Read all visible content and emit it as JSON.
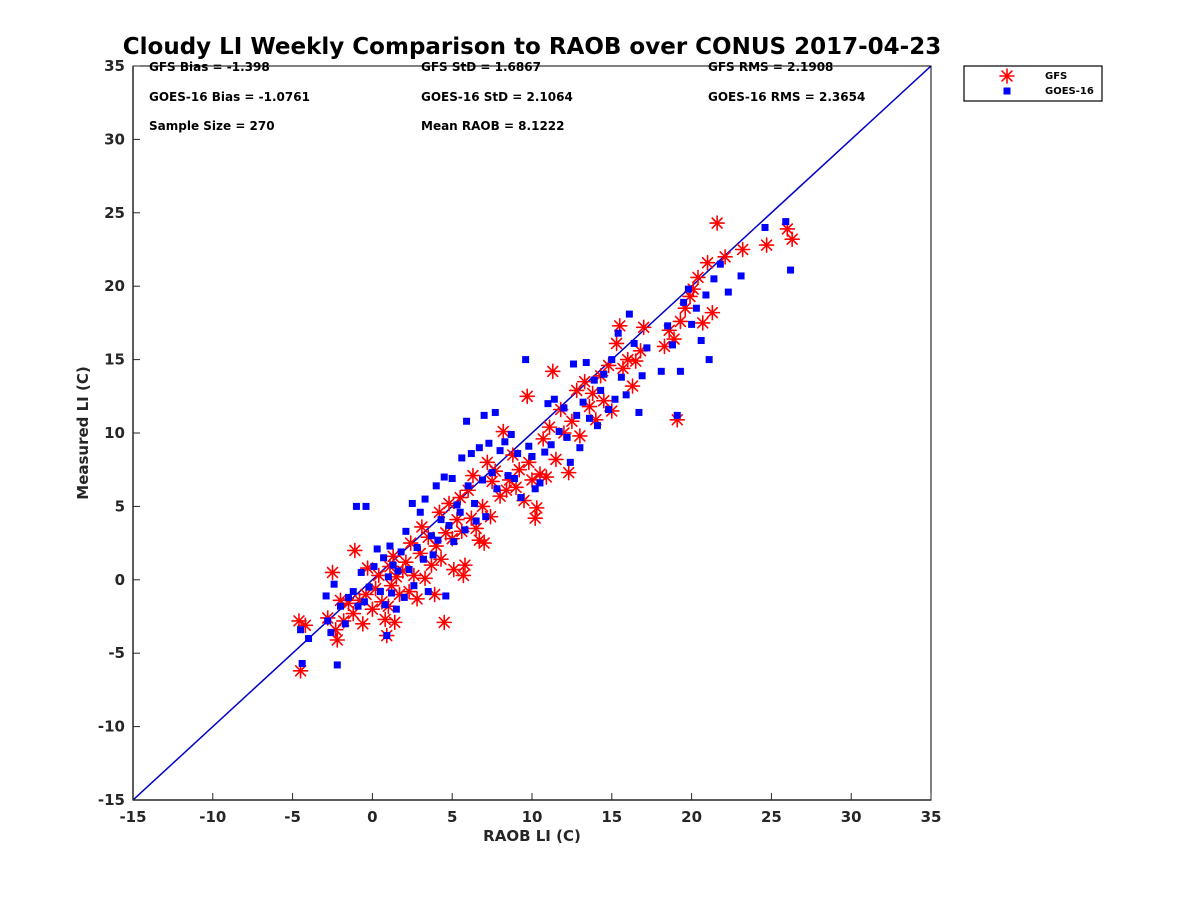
{
  "chart_data": {
    "type": "scatter",
    "title": "Cloudy LI Weekly Comparison to RAOB over CONUS 2017-04-23",
    "xlabel": "RAOB LI (C)",
    "ylabel": "Measured LI (C)",
    "xlim": [
      -15,
      35
    ],
    "ylim": [
      -15,
      35
    ],
    "xticks": [
      -15,
      -10,
      -5,
      0,
      5,
      10,
      15,
      20,
      25,
      30,
      35
    ],
    "yticks": [
      -15,
      -10,
      -5,
      0,
      5,
      10,
      15,
      20,
      25,
      30,
      35
    ],
    "grid": false,
    "legend_position": "outside-top-right",
    "reference_line": {
      "from": [
        -15,
        -15
      ],
      "to": [
        35,
        35
      ],
      "color": "#0000cc"
    },
    "stats": [
      "GFS Bias = -1.398",
      "GFS StD = 1.6867",
      "GFS RMS = 2.1908",
      "GOES-16 Bias = -1.0761",
      "GOES-16 StD = 2.1064",
      "GOES-16 RMS = 2.3654",
      "Sample Size = 270",
      "Mean RAOB = 8.1222"
    ],
    "series": [
      {
        "name": "GFS",
        "marker": "asterisk",
        "color": "#ff0000",
        "points": [
          [
            -4.6,
            -2.8
          ],
          [
            -4.5,
            -6.2
          ],
          [
            -4.2,
            -3.1
          ],
          [
            -2.8,
            -2.6
          ],
          [
            -2.5,
            0.5
          ],
          [
            -2.3,
            -3.4
          ],
          [
            -2.2,
            -4.1
          ],
          [
            -2.0,
            -1.4
          ],
          [
            -1.8,
            -2.8
          ],
          [
            -1.5,
            -1.6
          ],
          [
            -1.2,
            -2.3
          ],
          [
            -1.1,
            2.0
          ],
          [
            -0.8,
            -1.4
          ],
          [
            -0.6,
            -3.0
          ],
          [
            -0.4,
            -1.0
          ],
          [
            -0.3,
            0.8
          ],
          [
            0.0,
            -2.0
          ],
          [
            0.2,
            -0.6
          ],
          [
            0.4,
            0.3
          ],
          [
            0.6,
            -1.5
          ],
          [
            0.8,
            -2.7
          ],
          [
            0.9,
            -3.8
          ],
          [
            1.0,
            -1.8
          ],
          [
            1.1,
            0.9
          ],
          [
            1.2,
            -0.4
          ],
          [
            1.3,
            1.6
          ],
          [
            1.4,
            -2.9
          ],
          [
            1.5,
            0.2
          ],
          [
            1.7,
            -1.0
          ],
          [
            1.9,
            0.6
          ],
          [
            2.1,
            1.2
          ],
          [
            2.3,
            -0.8
          ],
          [
            2.4,
            2.5
          ],
          [
            2.6,
            0.3
          ],
          [
            2.8,
            -1.3
          ],
          [
            3.0,
            1.8
          ],
          [
            3.1,
            3.6
          ],
          [
            3.3,
            0.1
          ],
          [
            3.5,
            2.9
          ],
          [
            3.7,
            1.0
          ],
          [
            3.9,
            -1.0
          ],
          [
            4.0,
            2.3
          ],
          [
            4.2,
            4.6
          ],
          [
            4.3,
            1.4
          ],
          [
            4.5,
            -2.9
          ],
          [
            4.6,
            3.2
          ],
          [
            4.8,
            5.2
          ],
          [
            5.0,
            2.8
          ],
          [
            5.1,
            0.7
          ],
          [
            5.3,
            4.1
          ],
          [
            5.5,
            5.6
          ],
          [
            5.6,
            3.3
          ],
          [
            5.7,
            0.3
          ],
          [
            5.8,
            1.0
          ],
          [
            6.0,
            6.1
          ],
          [
            6.2,
            4.2
          ],
          [
            6.3,
            7.1
          ],
          [
            6.5,
            3.5
          ],
          [
            6.7,
            2.7
          ],
          [
            6.9,
            5.0
          ],
          [
            7.0,
            2.5
          ],
          [
            7.2,
            8.0
          ],
          [
            7.4,
            4.3
          ],
          [
            7.5,
            6.7
          ],
          [
            7.7,
            7.4
          ],
          [
            8.0,
            5.7
          ],
          [
            8.2,
            10.1
          ],
          [
            8.4,
            6.1
          ],
          [
            8.6,
            6.8
          ],
          [
            8.8,
            8.5
          ],
          [
            9.0,
            6.3
          ],
          [
            9.2,
            7.5
          ],
          [
            9.5,
            5.4
          ],
          [
            9.7,
            12.5
          ],
          [
            9.8,
            8.0
          ],
          [
            10.0,
            6.8
          ],
          [
            10.2,
            4.2
          ],
          [
            10.3,
            4.9
          ],
          [
            10.5,
            7.2
          ],
          [
            10.7,
            9.6
          ],
          [
            10.9,
            7.0
          ],
          [
            11.1,
            10.4
          ],
          [
            11.3,
            14.2
          ],
          [
            11.5,
            8.2
          ],
          [
            11.8,
            11.6
          ],
          [
            12.0,
            10.0
          ],
          [
            12.3,
            7.3
          ],
          [
            12.5,
            10.8
          ],
          [
            12.8,
            12.9
          ],
          [
            13.0,
            9.8
          ],
          [
            13.3,
            13.5
          ],
          [
            13.6,
            11.8
          ],
          [
            13.8,
            12.7
          ],
          [
            14.0,
            10.9
          ],
          [
            14.3,
            13.9
          ],
          [
            14.5,
            12.2
          ],
          [
            14.8,
            14.6
          ],
          [
            15.0,
            11.5
          ],
          [
            15.3,
            16.1
          ],
          [
            15.5,
            17.3
          ],
          [
            15.7,
            14.4
          ],
          [
            16.0,
            15.0
          ],
          [
            16.3,
            13.2
          ],
          [
            16.5,
            14.9
          ],
          [
            16.8,
            15.6
          ],
          [
            17.0,
            17.2
          ],
          [
            18.3,
            15.9
          ],
          [
            18.6,
            17.0
          ],
          [
            18.9,
            16.4
          ],
          [
            19.1,
            10.9
          ],
          [
            19.3,
            17.6
          ],
          [
            19.6,
            18.5
          ],
          [
            19.9,
            19.3
          ],
          [
            20.1,
            19.8
          ],
          [
            20.4,
            20.6
          ],
          [
            20.7,
            17.5
          ],
          [
            21.0,
            21.6
          ],
          [
            21.3,
            18.2
          ],
          [
            21.6,
            24.3
          ],
          [
            22.1,
            22.0
          ],
          [
            23.2,
            22.5
          ],
          [
            24.7,
            22.8
          ],
          [
            26.0,
            23.9
          ],
          [
            26.3,
            23.2
          ]
        ]
      },
      {
        "name": "GOES-16",
        "marker": "square",
        "color": "#0000ff",
        "points": [
          [
            -4.5,
            -3.4
          ],
          [
            -4.4,
            -5.7
          ],
          [
            -4.0,
            -4.0
          ],
          [
            -2.9,
            -1.1
          ],
          [
            -2.8,
            -2.8
          ],
          [
            -2.6,
            -3.6
          ],
          [
            -2.4,
            -0.3
          ],
          [
            -2.2,
            -5.8
          ],
          [
            -2.0,
            -1.8
          ],
          [
            -1.7,
            -3.0
          ],
          [
            -1.5,
            -1.2
          ],
          [
            -1.2,
            -0.8
          ],
          [
            -1.0,
            5.0
          ],
          [
            -0.9,
            -1.8
          ],
          [
            -0.7,
            0.5
          ],
          [
            -0.5,
            -1.5
          ],
          [
            -0.4,
            5.0
          ],
          [
            -0.2,
            -0.5
          ],
          [
            0.1,
            0.9
          ],
          [
            0.3,
            2.1
          ],
          [
            0.5,
            -0.8
          ],
          [
            0.7,
            1.5
          ],
          [
            0.8,
            -1.7
          ],
          [
            0.9,
            -3.8
          ],
          [
            1.0,
            0.2
          ],
          [
            1.1,
            2.3
          ],
          [
            1.2,
            -0.9
          ],
          [
            1.3,
            1.0
          ],
          [
            1.5,
            -2.0
          ],
          [
            1.6,
            0.6
          ],
          [
            1.8,
            1.9
          ],
          [
            2.0,
            -1.2
          ],
          [
            2.1,
            3.3
          ],
          [
            2.3,
            0.7
          ],
          [
            2.5,
            5.2
          ],
          [
            2.6,
            -0.4
          ],
          [
            2.8,
            2.2
          ],
          [
            3.0,
            4.6
          ],
          [
            3.2,
            1.4
          ],
          [
            3.3,
            5.5
          ],
          [
            3.5,
            -0.8
          ],
          [
            3.7,
            3.0
          ],
          [
            3.8,
            1.7
          ],
          [
            4.0,
            6.4
          ],
          [
            4.1,
            2.7
          ],
          [
            4.3,
            4.1
          ],
          [
            4.5,
            7.0
          ],
          [
            4.6,
            -1.1
          ],
          [
            4.8,
            3.7
          ],
          [
            5.0,
            6.9
          ],
          [
            5.1,
            2.6
          ],
          [
            5.3,
            5.1
          ],
          [
            5.5,
            4.6
          ],
          [
            5.6,
            8.3
          ],
          [
            5.8,
            3.4
          ],
          [
            5.9,
            10.8
          ],
          [
            6.0,
            6.4
          ],
          [
            6.2,
            8.6
          ],
          [
            6.4,
            5.2
          ],
          [
            6.5,
            4.0
          ],
          [
            6.7,
            9.0
          ],
          [
            6.9,
            6.8
          ],
          [
            7.0,
            11.2
          ],
          [
            7.1,
            4.3
          ],
          [
            7.3,
            9.3
          ],
          [
            7.5,
            7.3
          ],
          [
            7.7,
            11.4
          ],
          [
            7.8,
            6.2
          ],
          [
            8.0,
            8.8
          ],
          [
            8.3,
            9.4
          ],
          [
            8.5,
            7.1
          ],
          [
            8.7,
            9.9
          ],
          [
            8.9,
            6.9
          ],
          [
            9.1,
            8.6
          ],
          [
            9.3,
            5.6
          ],
          [
            9.6,
            15.0
          ],
          [
            9.8,
            9.1
          ],
          [
            10.0,
            8.4
          ],
          [
            10.2,
            6.2
          ],
          [
            10.5,
            6.6
          ],
          [
            10.8,
            8.7
          ],
          [
            11.0,
            12.0
          ],
          [
            11.2,
            9.2
          ],
          [
            11.4,
            12.3
          ],
          [
            11.7,
            10.1
          ],
          [
            12.0,
            11.7
          ],
          [
            12.2,
            9.7
          ],
          [
            12.4,
            8.0
          ],
          [
            12.6,
            14.7
          ],
          [
            12.8,
            11.2
          ],
          [
            13.0,
            9.0
          ],
          [
            13.2,
            12.1
          ],
          [
            13.4,
            14.8
          ],
          [
            13.6,
            11.0
          ],
          [
            13.9,
            13.6
          ],
          [
            14.1,
            10.5
          ],
          [
            14.3,
            12.9
          ],
          [
            14.5,
            14.0
          ],
          [
            14.8,
            11.6
          ],
          [
            15.0,
            15.0
          ],
          [
            15.2,
            12.3
          ],
          [
            15.4,
            16.8
          ],
          [
            15.6,
            13.8
          ],
          [
            15.9,
            12.6
          ],
          [
            16.1,
            18.1
          ],
          [
            16.4,
            16.1
          ],
          [
            16.7,
            11.4
          ],
          [
            16.9,
            13.9
          ],
          [
            17.2,
            15.8
          ],
          [
            18.1,
            14.2
          ],
          [
            18.5,
            17.3
          ],
          [
            18.8,
            16.0
          ],
          [
            19.1,
            11.2
          ],
          [
            19.3,
            14.2
          ],
          [
            19.5,
            18.9
          ],
          [
            19.8,
            19.8
          ],
          [
            20.0,
            17.4
          ],
          [
            20.3,
            18.5
          ],
          [
            20.6,
            16.3
          ],
          [
            20.9,
            19.4
          ],
          [
            21.1,
            15.0
          ],
          [
            21.4,
            20.5
          ],
          [
            21.8,
            21.5
          ],
          [
            22.3,
            19.6
          ],
          [
            23.1,
            20.7
          ],
          [
            24.6,
            24.0
          ],
          [
            25.9,
            24.4
          ],
          [
            26.2,
            21.1
          ]
        ]
      }
    ]
  }
}
